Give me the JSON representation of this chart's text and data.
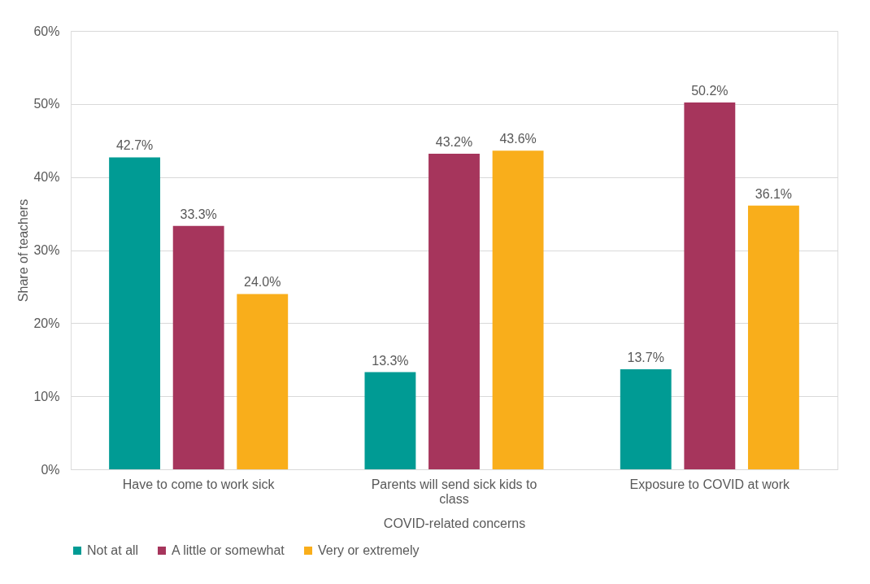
{
  "chart_data": {
    "type": "bar",
    "xlabel": "COVID-related  concerns",
    "ylabel": "Share of teachers",
    "categories": [
      "Have to come to work sick",
      "Parents will send sick kids to class",
      "Exposure to COVID at work"
    ],
    "series": [
      {
        "name": "Not at all",
        "color": "#009b94",
        "values": [
          42.7,
          13.3,
          13.7
        ],
        "value_labels": [
          "42.7%",
          "13.3%",
          "13.7%"
        ]
      },
      {
        "name": "A little or somewhat",
        "color": "#a6355c",
        "values": [
          33.3,
          43.2,
          50.2
        ],
        "value_labels": [
          "33.3%",
          "43.2%",
          "50.2%"
        ]
      },
      {
        "name": "Very or extremely",
        "color": "#f9ae1b",
        "values": [
          24.0,
          43.6,
          36.1
        ],
        "value_labels": [
          "24.0%",
          "43.6%",
          "36.1%"
        ]
      }
    ],
    "ylim": [
      0,
      60
    ],
    "yticks": [
      {
        "value": 0,
        "label": "0%"
      },
      {
        "value": 10,
        "label": "10%"
      },
      {
        "value": 20,
        "label": "20%"
      },
      {
        "value": 30,
        "label": "30%"
      },
      {
        "value": 40,
        "label": "40%"
      },
      {
        "value": 50,
        "label": "50%"
      },
      {
        "value": 60,
        "label": "60%"
      }
    ],
    "grid": "y",
    "legend": "bottom"
  }
}
